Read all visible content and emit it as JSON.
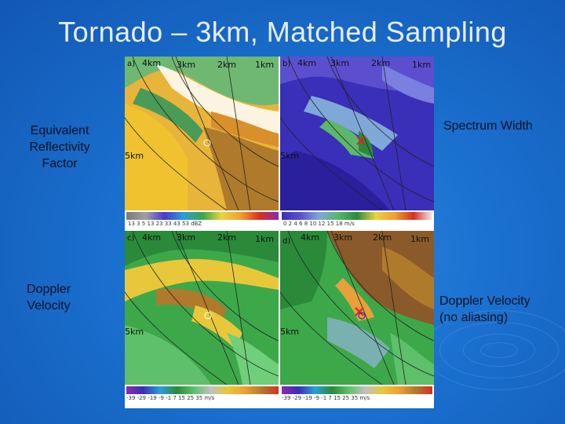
{
  "slide": {
    "title": "Tornado – 3km, Matched Sampling"
  },
  "labels": {
    "reflectivity": "Equivalent\nReflectivity\nFactor",
    "doppler": "Doppler\nVelocity",
    "spectrum": "Spectrum Width",
    "doppler_no_alias": "Doppler Velocity\n(no aliasing)"
  },
  "panels": [
    {
      "letter": "a)",
      "range_labels": [
        "4km",
        "3km",
        "2km",
        "1km",
        "5km"
      ]
    },
    {
      "letter": "b)",
      "range_labels": [
        "4km",
        "3km",
        "2km",
        "1km",
        "5km"
      ]
    },
    {
      "letter": "c)",
      "range_labels": [
        "4km",
        "3km",
        "2km",
        "1km",
        "5km"
      ]
    },
    {
      "letter": "d)",
      "range_labels": [
        "4km",
        "3km",
        "2km",
        "1km",
        "5km"
      ]
    }
  ],
  "colorbars": {
    "reflectivity_ticks": "13    3    5   13   23   33   43   53   dBZ",
    "spectrum_ticks": "0   2   4   6   8   10  12  15  18  m/s",
    "velocity_ticks_c": "-39  -29  -19   -9   -1    7   15   25   35  m/s",
    "velocity_ticks_d": "-39  -29  -19   -9   -1    7   15   25   35  m/s"
  },
  "colors": {
    "background": "#1a6fcf",
    "title": "#e8eef8",
    "label_text": "#0c1020"
  }
}
